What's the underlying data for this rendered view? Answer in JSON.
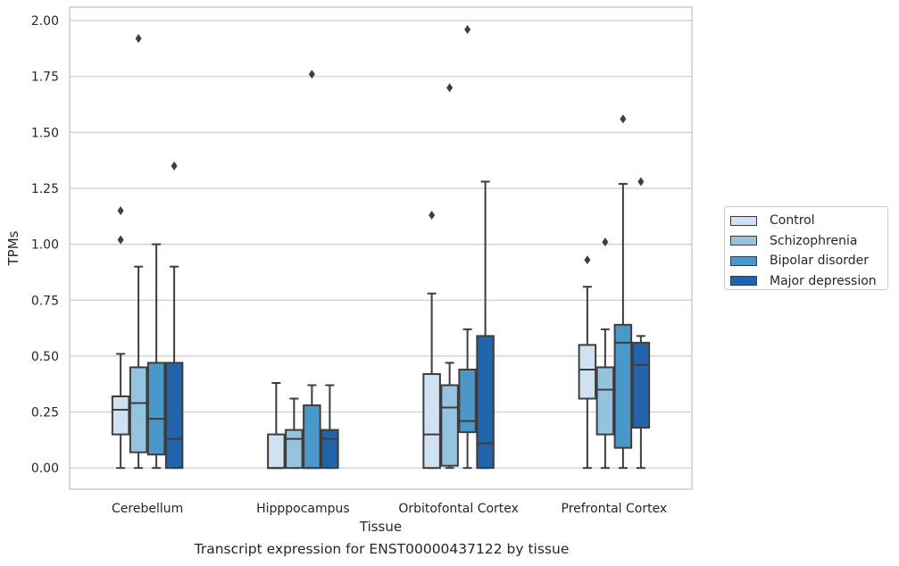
{
  "chart_data": {
    "type": "boxplot",
    "title": "Transcript expression for ENST00000437122 by tissue",
    "xlabel": "Tissue",
    "ylabel": "TPMs",
    "ylim": [
      -0.095,
      2.06
    ],
    "yticks": [
      "0.00",
      "0.25",
      "0.50",
      "0.75",
      "1.00",
      "1.25",
      "1.50",
      "1.75",
      "2.00"
    ],
    "categories": [
      "Cerebellum",
      "Hipppocampus",
      "Orbitofontal Cortex",
      "Prefrontal Cortex"
    ],
    "grid": "horizontal",
    "legend_position": "right",
    "series": [
      {
        "name": "Control",
        "color": "#d0e1f2",
        "boxes": [
          {
            "whislo": 0.0,
            "q1": 0.15,
            "med": 0.26,
            "q3": 0.32,
            "whishi": 0.51,
            "fliers": [
              1.02,
              1.15
            ]
          },
          {
            "whislo": 0.0,
            "q1": 0.0,
            "med": 0.0,
            "q3": 0.15,
            "whishi": 0.38,
            "fliers": []
          },
          {
            "whislo": 0.0,
            "q1": 0.0,
            "med": 0.15,
            "q3": 0.42,
            "whishi": 0.78,
            "fliers": [
              1.13
            ]
          },
          {
            "whislo": 0.0,
            "q1": 0.31,
            "med": 0.44,
            "q3": 0.55,
            "whishi": 0.81,
            "fliers": [
              0.93
            ]
          }
        ]
      },
      {
        "name": "Schizophrenia",
        "color": "#94c4df",
        "boxes": [
          {
            "whislo": 0.0,
            "q1": 0.07,
            "med": 0.29,
            "q3": 0.45,
            "whishi": 0.9,
            "fliers": [
              1.92
            ]
          },
          {
            "whislo": 0.0,
            "q1": 0.0,
            "med": 0.13,
            "q3": 0.17,
            "whishi": 0.31,
            "fliers": []
          },
          {
            "whislo": 0.0,
            "q1": 0.01,
            "med": 0.27,
            "q3": 0.37,
            "whishi": 0.47,
            "fliers": [
              1.7
            ]
          },
          {
            "whislo": 0.0,
            "q1": 0.15,
            "med": 0.35,
            "q3": 0.45,
            "whishi": 0.62,
            "fliers": [
              1.01
            ]
          }
        ]
      },
      {
        "name": "Bipolar disorder",
        "color": "#4a98c9",
        "boxes": [
          {
            "whislo": 0.0,
            "q1": 0.06,
            "med": 0.22,
            "q3": 0.47,
            "whishi": 1.0,
            "fliers": []
          },
          {
            "whislo": 0.0,
            "q1": 0.0,
            "med": 0.0,
            "q3": 0.28,
            "whishi": 0.37,
            "fliers": [
              1.76
            ]
          },
          {
            "whislo": 0.0,
            "q1": 0.16,
            "med": 0.21,
            "q3": 0.44,
            "whishi": 0.62,
            "fliers": [
              1.96
            ]
          },
          {
            "whislo": 0.0,
            "q1": 0.09,
            "med": 0.56,
            "q3": 0.64,
            "whishi": 1.27,
            "fliers": [
              1.56
            ]
          }
        ]
      },
      {
        "name": "Major depression",
        "color": "#2164ab",
        "boxes": [
          {
            "whislo": 0.0,
            "q1": 0.0,
            "med": 0.13,
            "q3": 0.47,
            "whishi": 0.9,
            "fliers": [
              1.35
            ]
          },
          {
            "whislo": 0.0,
            "q1": 0.0,
            "med": 0.13,
            "q3": 0.17,
            "whishi": 0.37,
            "fliers": []
          },
          {
            "whislo": 0.0,
            "q1": 0.0,
            "med": 0.11,
            "q3": 0.59,
            "whishi": 1.28,
            "fliers": []
          },
          {
            "whislo": 0.0,
            "q1": 0.18,
            "med": 0.46,
            "q3": 0.56,
            "whishi": 0.59,
            "fliers": [
              1.28
            ]
          }
        ]
      }
    ]
  }
}
